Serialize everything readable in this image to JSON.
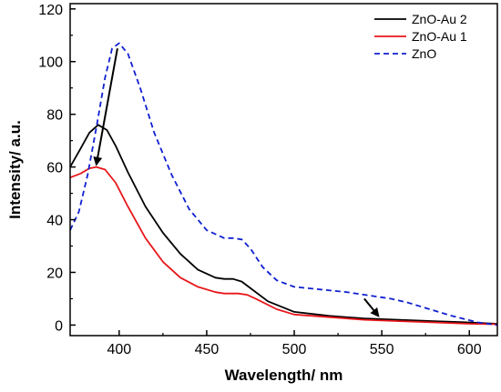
{
  "chart_data": {
    "type": "line",
    "xlabel": "Wavelength/ nm",
    "ylabel": "Intensity/ a.u.",
    "xlim": [
      372,
      616
    ],
    "ylim": [
      -4,
      122
    ],
    "x_ticks": [
      400,
      450,
      500,
      550,
      600
    ],
    "y_ticks": [
      0,
      20,
      40,
      60,
      80,
      100,
      120
    ],
    "legend_position": "top-right",
    "grid": false,
    "series": [
      {
        "name": "ZnO-Au 2",
        "color": "#000000",
        "dash": "solid",
        "x": [
          372,
          378,
          383,
          388,
          393,
          398,
          405,
          415,
          425,
          435,
          445,
          455,
          460,
          465,
          470,
          475,
          485,
          500,
          520,
          540,
          560,
          580,
          600,
          616
        ],
        "y": [
          60,
          67,
          73,
          76,
          74,
          68,
          58,
          45,
          35,
          27,
          21,
          18,
          17.5,
          17.5,
          16.5,
          14,
          9,
          5,
          3.5,
          2.5,
          2,
          1.5,
          1,
          0.5
        ]
      },
      {
        "name": "ZnO-Au 1",
        "color": "#e8161b",
        "dash": "solid",
        "x": [
          372,
          378,
          383,
          387,
          392,
          398,
          405,
          415,
          425,
          435,
          445,
          455,
          460,
          468,
          473,
          478,
          490,
          500,
          520,
          540,
          560,
          580,
          600,
          616
        ],
        "y": [
          56,
          57.5,
          59.5,
          60,
          59,
          54,
          45,
          33,
          24,
          18,
          14.5,
          12.5,
          12,
          12,
          11.5,
          10,
          6,
          4,
          3,
          2,
          1.5,
          1,
          0.5,
          0.3
        ]
      },
      {
        "name": "ZnO",
        "color": "#1020d0",
        "dash": "dashed",
        "x": [
          372,
          377,
          382,
          387,
          392,
          396,
          400,
          405,
          412,
          420,
          430,
          440,
          450,
          460,
          465,
          470,
          475,
          482,
          490,
          500,
          515,
          530,
          545,
          555,
          565,
          575,
          590,
          605,
          616
        ],
        "y": [
          36,
          43,
          57,
          75,
          94,
          105,
          107,
          103,
          90,
          73,
          57,
          44,
          36,
          33,
          33,
          32.5,
          29,
          22,
          17,
          14.5,
          13.5,
          12.5,
          11,
          10,
          8.5,
          6.5,
          3.5,
          1,
          0
        ]
      }
    ],
    "annotations": [
      {
        "type": "arrow",
        "from": [
          399,
          105
        ],
        "to": [
          387,
          61
        ]
      },
      {
        "type": "arrow",
        "from": [
          540,
          10
        ],
        "to": [
          548,
          3.5
        ]
      }
    ]
  }
}
